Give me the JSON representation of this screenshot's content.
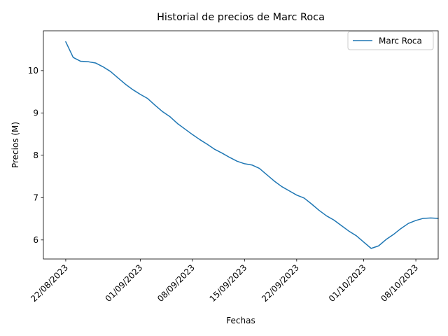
{
  "chart_data": {
    "type": "line",
    "title": "Historial de precios de Marc Roca",
    "xlabel": "Fechas",
    "ylabel": "Precios (M)",
    "x_type": "date",
    "x_tick_labels": [
      "22/08/2023",
      "01/09/2023",
      "08/09/2023",
      "15/09/2023",
      "22/09/2023",
      "01/10/2023",
      "08/10/2023"
    ],
    "x_ticks": [
      "2023-08-22",
      "2023-09-01",
      "2023-09-08",
      "2023-09-15",
      "2023-09-22",
      "2023-10-01",
      "2023-10-08"
    ],
    "xlim": [
      "2023-08-19",
      "2023-10-11"
    ],
    "ylim": [
      5.55,
      10.94
    ],
    "y_ticks": [
      6,
      7,
      8,
      9,
      10
    ],
    "y_tick_labels": [
      "6",
      "7",
      "8",
      "9",
      "10"
    ],
    "grid": false,
    "legend_position": "top-right",
    "series": [
      {
        "name": "Marc Roca",
        "color": "#1f77b4",
        "x": [
          "2023-08-22",
          "2023-08-23",
          "2023-08-24",
          "2023-08-25",
          "2023-08-26",
          "2023-08-27",
          "2023-08-28",
          "2023-08-29",
          "2023-08-30",
          "2023-08-31",
          "2023-09-01",
          "2023-09-02",
          "2023-09-03",
          "2023-09-04",
          "2023-09-05",
          "2023-09-06",
          "2023-09-07",
          "2023-09-08",
          "2023-09-09",
          "2023-09-10",
          "2023-09-11",
          "2023-09-12",
          "2023-09-13",
          "2023-09-14",
          "2023-09-15",
          "2023-09-16",
          "2023-09-17",
          "2023-09-18",
          "2023-09-19",
          "2023-09-20",
          "2023-09-21",
          "2023-09-22",
          "2023-09-23",
          "2023-09-24",
          "2023-09-25",
          "2023-09-26",
          "2023-09-27",
          "2023-09-28",
          "2023-09-29",
          "2023-09-30",
          "2023-10-01",
          "2023-10-02",
          "2023-10-03",
          "2023-10-04",
          "2023-10-05",
          "2023-10-06",
          "2023-10-07",
          "2023-10-08",
          "2023-10-09",
          "2023-10-10",
          "2023-10-11"
        ],
        "values": [
          10.68,
          10.31,
          10.22,
          10.21,
          10.18,
          10.09,
          9.98,
          9.83,
          9.68,
          9.55,
          9.44,
          9.34,
          9.18,
          9.03,
          8.91,
          8.75,
          8.62,
          8.49,
          8.37,
          8.26,
          8.14,
          8.05,
          7.95,
          7.86,
          7.8,
          7.77,
          7.69,
          7.54,
          7.39,
          7.26,
          7.16,
          7.06,
          6.99,
          6.85,
          6.7,
          6.57,
          6.47,
          6.34,
          6.21,
          6.1,
          5.95,
          5.8,
          5.86,
          6.01,
          6.13,
          6.27,
          6.39,
          6.46,
          6.51,
          6.52,
          6.51
        ]
      }
    ]
  }
}
